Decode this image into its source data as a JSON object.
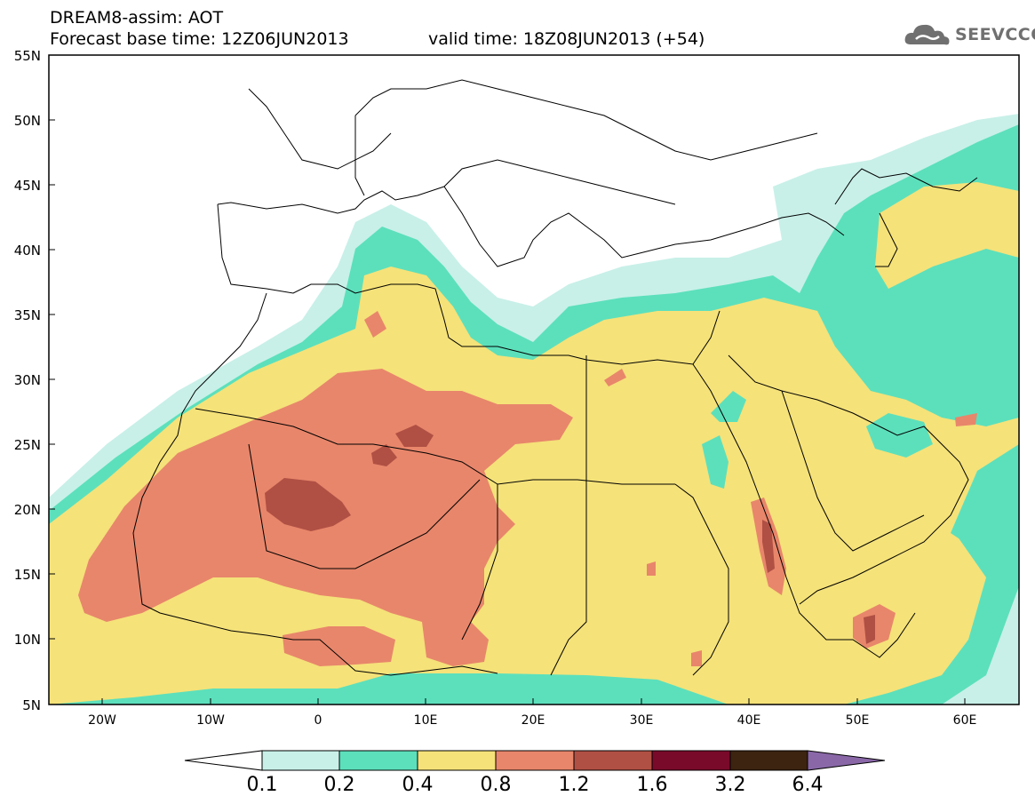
{
  "header": {
    "model_title": "DREAM8-assim: AOT",
    "base_time": "Forecast base time: 12Z06JUN2013",
    "valid_time": "valid time: 18Z08JUN2013 (+54)",
    "logo_text": "SEEVCCC",
    "logo_icon": "cloud-logo-icon"
  },
  "axes": {
    "lat_labels": [
      "55N",
      "50N",
      "45N",
      "40N",
      "35N",
      "30N",
      "25N",
      "20N",
      "15N",
      "10N",
      "5N"
    ],
    "lon_labels": [
      "20W",
      "10W",
      "0",
      "10E",
      "20E",
      "30E",
      "40E",
      "50E",
      "60E"
    ]
  },
  "colorbar": {
    "labels": [
      "0.1",
      "0.2",
      "0.4",
      "0.8",
      "1.2",
      "1.6",
      "3.2",
      "6.4"
    ],
    "colors": [
      "#ffffff",
      "#c8f0e8",
      "#5ce0bc",
      "#f5e279",
      "#e8866b",
      "#b05044",
      "#7a0a2a",
      "#3c2410",
      "#8a68a8"
    ]
  },
  "field_colors": {
    "light_aqua": "#c8f0e8",
    "aqua": "#5ce0bc",
    "yellow": "#f5e279",
    "salmon": "#e8866b",
    "brown": "#b05044"
  }
}
